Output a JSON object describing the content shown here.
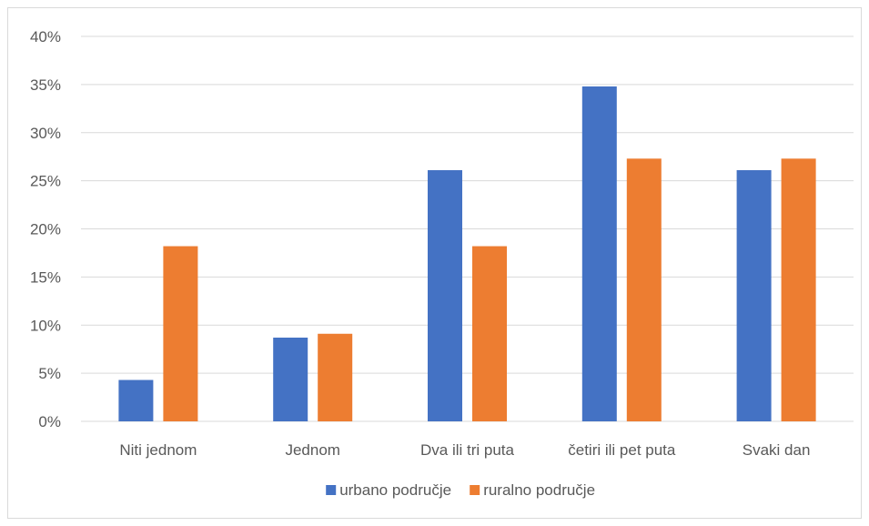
{
  "chart_data": {
    "type": "bar",
    "title": "",
    "xlabel": "",
    "ylabel": "",
    "categories": [
      "Niti jednom",
      "Jednom",
      "Dva ili tri puta",
      "četiri ili pet puta",
      "Svaki dan"
    ],
    "series": [
      {
        "name": "urbano područje",
        "values": [
          4.3,
          8.7,
          26.1,
          34.8,
          26.1
        ],
        "color": "#4472c4"
      },
      {
        "name": "ruralno područje",
        "values": [
          18.2,
          9.1,
          18.2,
          27.3,
          27.3
        ],
        "color": "#ed7d31"
      }
    ],
    "ylim": [
      0,
      40
    ],
    "yticks": [
      "0%",
      "5%",
      "10%",
      "15%",
      "20%",
      "25%",
      "30%",
      "35%",
      "40%"
    ],
    "grid": true,
    "legend_position": "bottom",
    "gridline_color": "#d9d9d9"
  }
}
